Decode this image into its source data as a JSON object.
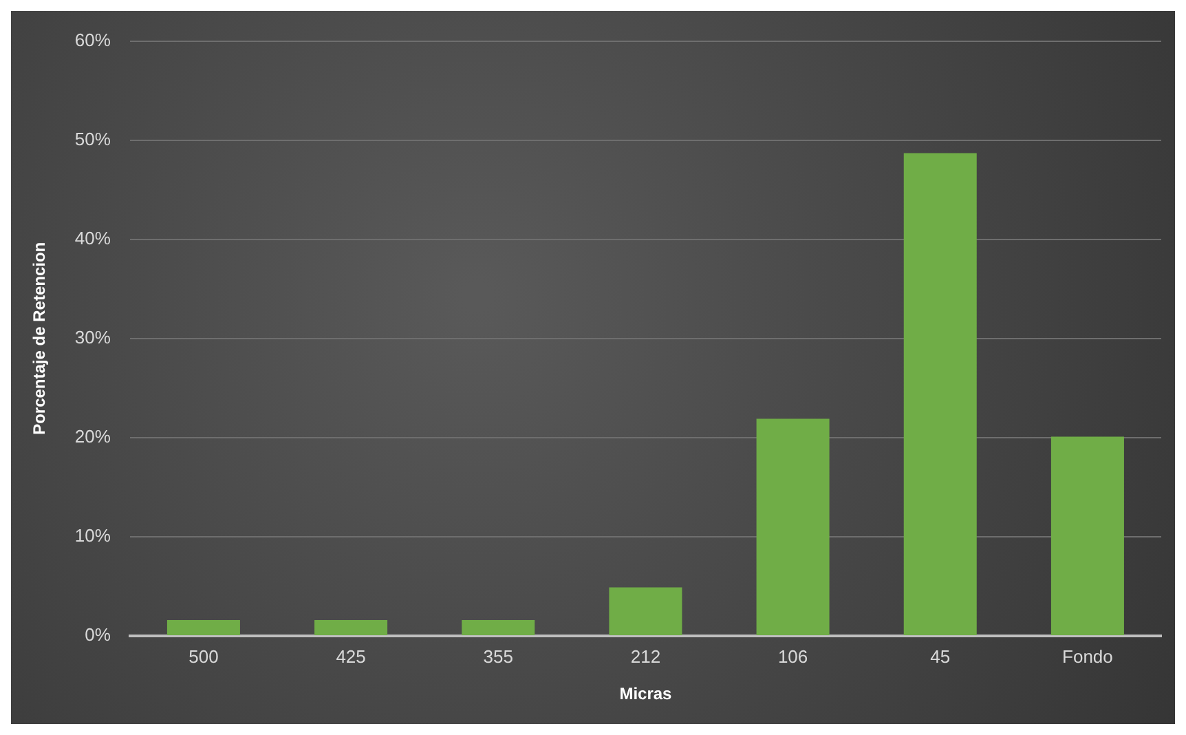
{
  "chart_data": {
    "type": "bar",
    "xlabel": "Micras",
    "ylabel": "Porcentaje de Retencion",
    "categories": [
      "500",
      "425",
      "355",
      "212",
      "106",
      "45",
      "Fondo"
    ],
    "values": [
      1.6,
      1.6,
      1.6,
      4.9,
      21.9,
      48.7,
      20.1
    ],
    "color": "#70ad47",
    "ylim": [
      0,
      60
    ],
    "yticks": [
      {
        "value": 0,
        "label": "0%"
      },
      {
        "value": 10,
        "label": "10%"
      },
      {
        "value": 20,
        "label": "20%"
      },
      {
        "value": 30,
        "label": "30%"
      },
      {
        "value": 40,
        "label": "40%"
      },
      {
        "value": 50,
        "label": "50%"
      },
      {
        "value": 60,
        "label": "60%"
      }
    ],
    "grid": "y",
    "legend": false
  }
}
